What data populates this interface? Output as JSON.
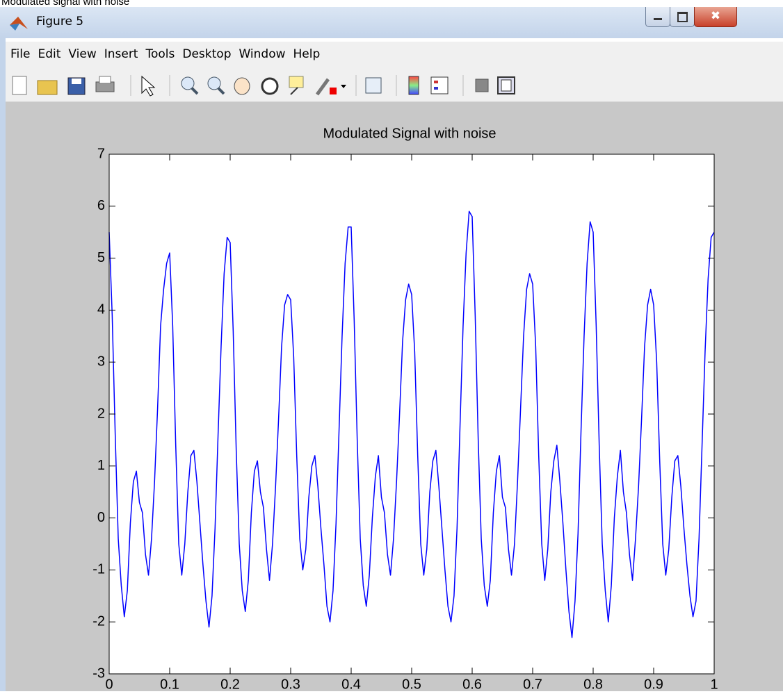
{
  "caption": "Modulated signal with noise",
  "window": {
    "title": "Figure 5"
  },
  "menu": [
    "File",
    "Edit",
    "View",
    "Insert",
    "Tools",
    "Desktop",
    "Window",
    "Help"
  ],
  "chart_data": {
    "type": "line",
    "title": "Modulated Signal with noise",
    "x": [
      0,
      0.005,
      0.01,
      0.015,
      0.02,
      0.025,
      0.03,
      0.035,
      0.04,
      0.045,
      0.05,
      0.055,
      0.06,
      0.065,
      0.07,
      0.075,
      0.08,
      0.085,
      0.09,
      0.095,
      0.1,
      0.105,
      0.11,
      0.115,
      0.12,
      0.125,
      0.13,
      0.135,
      0.14,
      0.145,
      0.15,
      0.155,
      0.16,
      0.165,
      0.17,
      0.175,
      0.18,
      0.185,
      0.19,
      0.195,
      0.2,
      0.205,
      0.21,
      0.215,
      0.22,
      0.225,
      0.23,
      0.235,
      0.24,
      0.245,
      0.25,
      0.255,
      0.26,
      0.265,
      0.27,
      0.275,
      0.28,
      0.285,
      0.29,
      0.295,
      0.3,
      0.305,
      0.31,
      0.315,
      0.32,
      0.325,
      0.33,
      0.335,
      0.34,
      0.345,
      0.35,
      0.355,
      0.36,
      0.365,
      0.37,
      0.375,
      0.38,
      0.385,
      0.39,
      0.395,
      0.4,
      0.405,
      0.41,
      0.415,
      0.42,
      0.425,
      0.43,
      0.435,
      0.44,
      0.445,
      0.45,
      0.455,
      0.46,
      0.465,
      0.47,
      0.475,
      0.48,
      0.485,
      0.49,
      0.495,
      0.5,
      0.505,
      0.51,
      0.515,
      0.52,
      0.525,
      0.53,
      0.535,
      0.54,
      0.545,
      0.55,
      0.555,
      0.56,
      0.565,
      0.57,
      0.575,
      0.58,
      0.585,
      0.59,
      0.595,
      0.6,
      0.605,
      0.61,
      0.615,
      0.62,
      0.625,
      0.63,
      0.635,
      0.64,
      0.645,
      0.65,
      0.655,
      0.66,
      0.665,
      0.67,
      0.675,
      0.68,
      0.685,
      0.69,
      0.695,
      0.7,
      0.705,
      0.71,
      0.715,
      0.72,
      0.725,
      0.73,
      0.735,
      0.74,
      0.745,
      0.75,
      0.755,
      0.76,
      0.765,
      0.77,
      0.775,
      0.78,
      0.785,
      0.79,
      0.795,
      0.8,
      0.805,
      0.81,
      0.815,
      0.82,
      0.825,
      0.83,
      0.835,
      0.84,
      0.845,
      0.85,
      0.855,
      0.86,
      0.865,
      0.87,
      0.875,
      0.88,
      0.885,
      0.89,
      0.895,
      0.9,
      0.905,
      0.91,
      0.915,
      0.92,
      0.925,
      0.93,
      0.935,
      0.94,
      0.945,
      0.95,
      0.955,
      0.96,
      0.965,
      0.97,
      0.975,
      0.98,
      0.985,
      0.99,
      0.995,
      1
    ],
    "series": [
      {
        "color": "#0000ff",
        "values": [
          5.5,
          3.9,
          1.6,
          -0.4,
          -1.3,
          -1.9,
          -1.4,
          -0.1,
          0.7,
          0.9,
          0.3,
          0.1,
          -0.7,
          -1.1,
          -0.4,
          0.7,
          2.1,
          3.7,
          4.4,
          4.9,
          5.1,
          3.7,
          1.4,
          -0.5,
          -1.1,
          -0.5,
          0.5,
          1.2,
          1.3,
          0.7,
          -0.1,
          -0.9,
          -1.6,
          -2.1,
          -1.5,
          -0.2,
          1.6,
          3.3,
          4.7,
          5.4,
          5.3,
          3.6,
          1.3,
          -0.5,
          -1.4,
          -1.8,
          -1.2,
          0.1,
          0.9,
          1.1,
          0.5,
          0.2,
          -0.6,
          -1.2,
          -0.5,
          0.6,
          1.9,
          3.3,
          4.1,
          4.3,
          4.2,
          3.1,
          1.2,
          -0.4,
          -1.0,
          -0.6,
          0.4,
          1.0,
          1.2,
          0.6,
          -0.2,
          -0.9,
          -1.7,
          -2.0,
          -1.4,
          -0.1,
          1.7,
          3.5,
          4.9,
          5.6,
          5.6,
          3.8,
          1.5,
          -0.4,
          -1.3,
          -1.7,
          -1.1,
          0.0,
          0.8,
          1.2,
          0.4,
          0.1,
          -0.7,
          -1.1,
          -0.4,
          0.7,
          2.0,
          3.4,
          4.2,
          4.5,
          4.3,
          3.2,
          1.2,
          -0.5,
          -1.1,
          -0.6,
          0.5,
          1.1,
          1.3,
          0.6,
          -0.2,
          -1.0,
          -1.7,
          -2.0,
          -1.5,
          -0.2,
          1.8,
          3.7,
          5.1,
          5.9,
          5.8,
          3.9,
          1.5,
          -0.4,
          -1.3,
          -1.7,
          -1.2,
          0.1,
          0.9,
          1.2,
          0.4,
          0.2,
          -0.6,
          -1.1,
          -0.5,
          0.7,
          2.1,
          3.5,
          4.4,
          4.7,
          4.5,
          3.3,
          1.2,
          -0.5,
          -1.2,
          -0.6,
          0.5,
          1.1,
          1.4,
          0.7,
          -0.1,
          -1.0,
          -1.8,
          -2.3,
          -1.6,
          -0.3,
          1.7,
          3.5,
          4.9,
          5.7,
          5.5,
          3.7,
          1.4,
          -0.5,
          -1.4,
          -2.0,
          -1.3,
          0.0,
          0.8,
          1.3,
          0.5,
          0.1,
          -0.7,
          -1.2,
          -0.4,
          0.6,
          1.9,
          3.3,
          4.1,
          4.4,
          4.1,
          3.0,
          1.1,
          -0.5,
          -1.1,
          -0.6,
          0.4,
          1.1,
          1.2,
          0.6,
          -0.2,
          -0.9,
          -1.5,
          -1.9,
          -1.6,
          -0.4,
          1.4,
          3.2,
          4.6,
          5.4,
          5.5
        ]
      }
    ],
    "xlim": [
      0,
      1
    ],
    "ylim": [
      -3,
      7
    ],
    "xticks": [
      0,
      0.1,
      0.2,
      0.3,
      0.4,
      0.5,
      0.6,
      0.7,
      0.8,
      0.9,
      1
    ],
    "yticks": [
      -3,
      -2,
      -1,
      0,
      1,
      2,
      3,
      4,
      5,
      6,
      7
    ],
    "grid": false
  }
}
